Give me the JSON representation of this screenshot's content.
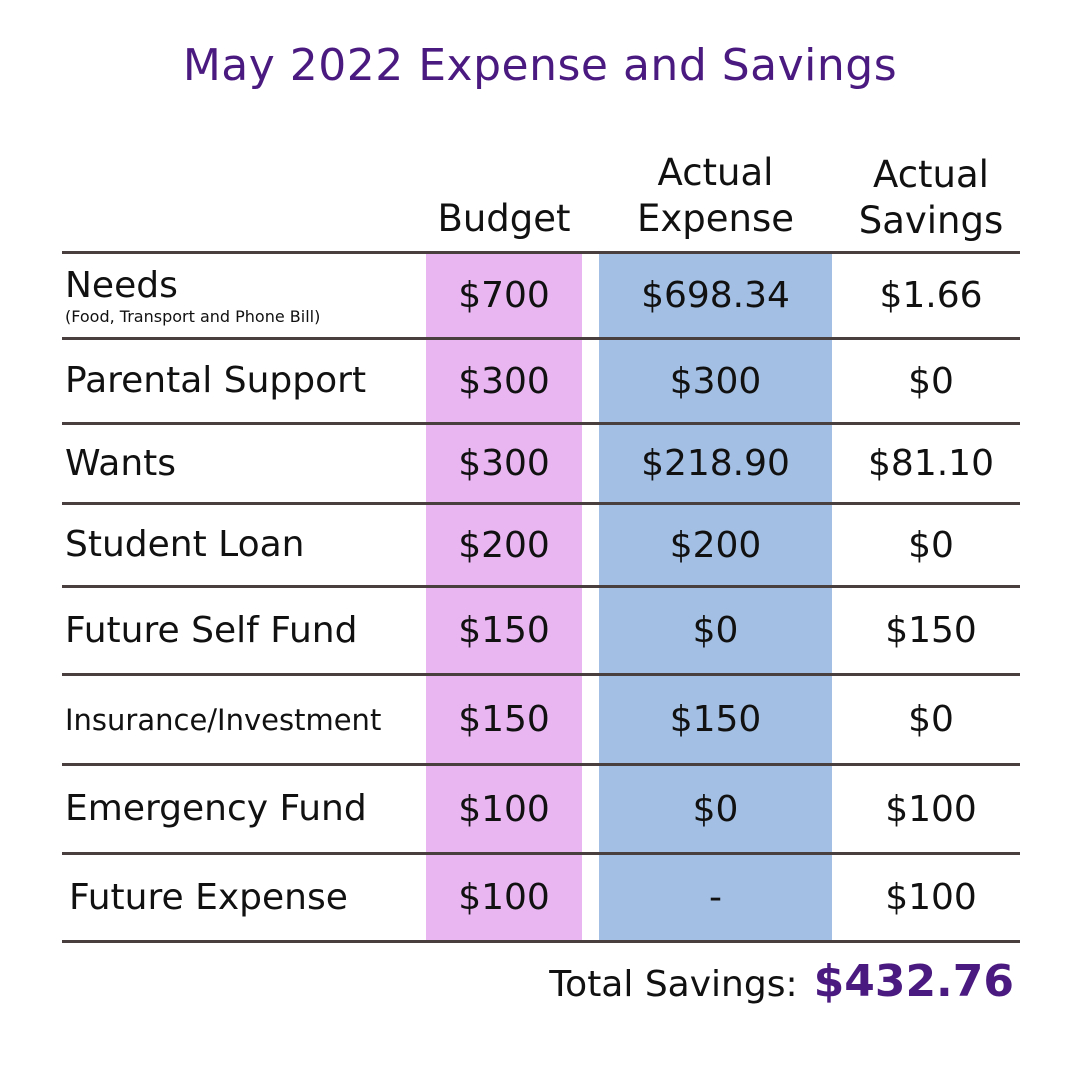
{
  "title": "May 2022 Expense and Savings",
  "columns": {
    "budget": "Budget",
    "actual_expense": "Actual\nExpense",
    "actual_savings": "Actual\nSavings"
  },
  "rows": [
    {
      "category": "Needs",
      "subtitle": "(Food, Transport and Phone Bill)",
      "budget": "$700",
      "actual_expense": "$698.34",
      "actual_savings": "$1.66"
    },
    {
      "category": "Parental Support",
      "budget": "$300",
      "actual_expense": "$300",
      "actual_savings": "$0"
    },
    {
      "category": "Wants",
      "budget": "$300",
      "actual_expense": "$218.90",
      "actual_savings": "$81.10"
    },
    {
      "category": "Student Loan",
      "budget": "$200",
      "actual_expense": "$200",
      "actual_savings": "$0"
    },
    {
      "category": "Future Self Fund",
      "budget": "$150",
      "actual_expense": "$0",
      "actual_savings": "$150"
    },
    {
      "category": "Insurance/Investment",
      "budget": "$150",
      "actual_expense": "$150",
      "actual_savings": "$0"
    },
    {
      "category": "Emergency Fund",
      "budget": "$100",
      "actual_expense": "$0",
      "actual_savings": "$100"
    },
    {
      "category": "Future Expense",
      "budget": "$100",
      "actual_expense": "-",
      "actual_savings": "$100"
    }
  ],
  "total": {
    "label": "Total Savings:",
    "value": "$432.76"
  },
  "colors": {
    "title": "#4b1a80",
    "budget_column": "#e9b6f2",
    "expense_column": "#a3bfe3",
    "rule": "#4a3f3f"
  }
}
